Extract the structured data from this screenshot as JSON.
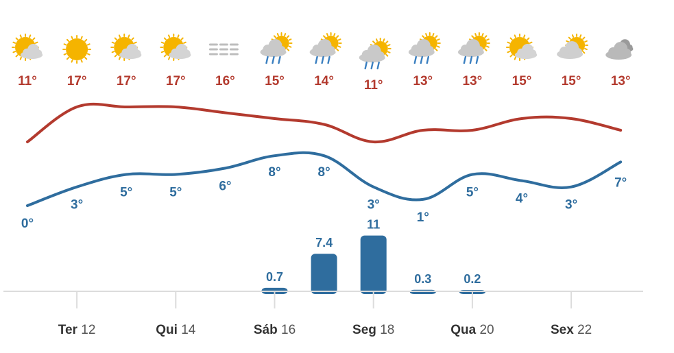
{
  "chart_data": {
    "type": "line",
    "days": [
      {
        "icon": "partly-sunny-icon",
        "high": "11°",
        "low": "0°"
      },
      {
        "icon": "sun-icon",
        "high": "17°",
        "low": "3°"
      },
      {
        "icon": "partly-sunny-icon",
        "high": "17°",
        "low": "5°"
      },
      {
        "icon": "partly-sunny-icon",
        "high": "17°",
        "low": "5°"
      },
      {
        "icon": "fog-icon",
        "high": "16°",
        "low": "6°"
      },
      {
        "icon": "rain-sun-icon",
        "high": "15°",
        "low": "8°"
      },
      {
        "icon": "rain-sun-icon",
        "high": "14°",
        "low": "8°"
      },
      {
        "icon": "rain-sun-icon",
        "high": "11°",
        "low": "3°"
      },
      {
        "icon": "rain-sun-icon",
        "high": "13°",
        "low": "1°"
      },
      {
        "icon": "rain-sun-icon",
        "high": "13°",
        "low": "5°"
      },
      {
        "icon": "partly-sunny-icon",
        "high": "15°",
        "low": "4°"
      },
      {
        "icon": "mostly-cloudy-sun-icon",
        "high": "15°",
        "low": "3°"
      },
      {
        "icon": "cloud-icon",
        "high": "13°",
        "low": "7°"
      }
    ],
    "series": [
      {
        "values": [
          11,
          17,
          17,
          17,
          16,
          15,
          14,
          11,
          13,
          13,
          15,
          15,
          13
        ],
        "color": "#b33a2e"
      },
      {
        "values": [
          0,
          3,
          5,
          5,
          6,
          8,
          8,
          3,
          1,
          5,
          4,
          3,
          7
        ],
        "color": "#2f6d9e"
      }
    ],
    "precipitation": [
      {
        "index": 5,
        "value": 0.7,
        "label": "0.7"
      },
      {
        "index": 6,
        "value": 7.4,
        "label": "7.4"
      },
      {
        "index": 7,
        "value": 11,
        "label": "11"
      },
      {
        "index": 8,
        "value": 0.3,
        "label": "0.3"
      },
      {
        "index": 9,
        "value": 0.2,
        "label": "0.2"
      }
    ],
    "x_ticks": [
      {
        "index": 1,
        "name": "Ter",
        "num": "12"
      },
      {
        "index": 3,
        "name": "Qui",
        "num": "14"
      },
      {
        "index": 5,
        "name": "Sáb",
        "num": "16"
      },
      {
        "index": 7,
        "name": "Seg",
        "num": "18"
      },
      {
        "index": 9,
        "name": "Qua",
        "num": "20"
      },
      {
        "index": 11,
        "name": "Sex",
        "num": "22"
      }
    ],
    "colors": {
      "high": "#b33a2e",
      "low": "#2f6d9e",
      "bar": "#2f6d9e",
      "axis": "#dcdcdc",
      "sun": "#f5b400",
      "cloud": "#c9c9c9",
      "rain": "#3a7fc0"
    }
  }
}
